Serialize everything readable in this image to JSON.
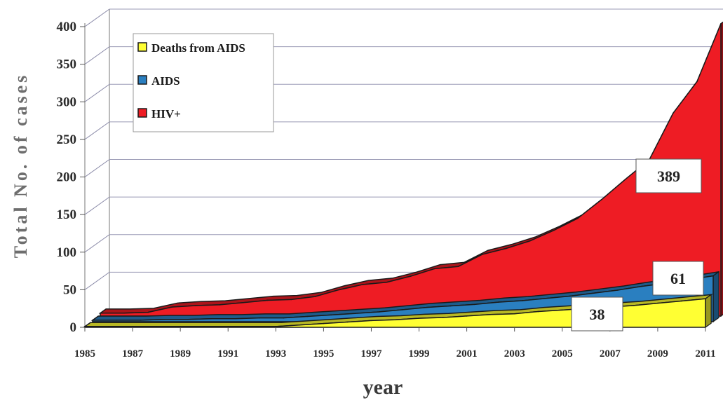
{
  "chart_data": {
    "type": "area",
    "xlabel": "year",
    "ylabel": "Total No. of cases",
    "ylim": [
      0,
      400
    ],
    "yticks": [
      0,
      50,
      100,
      150,
      200,
      250,
      300,
      350,
      400
    ],
    "xtick_labels": [
      "1985",
      "1987",
      "1989",
      "1991",
      "1993",
      "1995",
      "1997",
      "1999",
      "2001",
      "2003",
      "2005",
      "2007",
      "2009",
      "2011"
    ],
    "x": [
      1985,
      1986,
      1987,
      1988,
      1989,
      1990,
      1991,
      1992,
      1993,
      1994,
      1995,
      1996,
      1997,
      1998,
      1999,
      2000,
      2001,
      2002,
      2003,
      2004,
      2005,
      2006,
      2007,
      2008,
      2009,
      2010,
      2011
    ],
    "series": [
      {
        "name": "Deaths from AIDS",
        "color": "#ffff33",
        "values": [
          1,
          1,
          1,
          1,
          1,
          1,
          1,
          1,
          1,
          3,
          5,
          7,
          9,
          10,
          12,
          13,
          15,
          17,
          18,
          21,
          23,
          25,
          27,
          29,
          32,
          35,
          38
        ]
      },
      {
        "name": "AIDS",
        "color": "#2a7fc0",
        "values": [
          2,
          2,
          2,
          3,
          3,
          4,
          4,
          5,
          5,
          7,
          9,
          11,
          13,
          16,
          19,
          21,
          23,
          26,
          28,
          31,
          34,
          38,
          42,
          47,
          51,
          56,
          61
        ]
      },
      {
        "name": "HIV+",
        "color": "#ee1c24",
        "values": [
          4,
          4,
          5,
          12,
          14,
          15,
          18,
          21,
          22,
          26,
          35,
          42,
          45,
          53,
          63,
          66,
          82,
          90,
          100,
          114,
          130,
          155,
          182,
          208,
          270,
          312,
          389
        ]
      }
    ],
    "legend": {
      "position": "top-left",
      "items": [
        "Deaths from AIDS",
        "AIDS",
        "HIV+"
      ]
    },
    "annotations": [
      "389",
      "61",
      "38"
    ],
    "grid": true
  }
}
